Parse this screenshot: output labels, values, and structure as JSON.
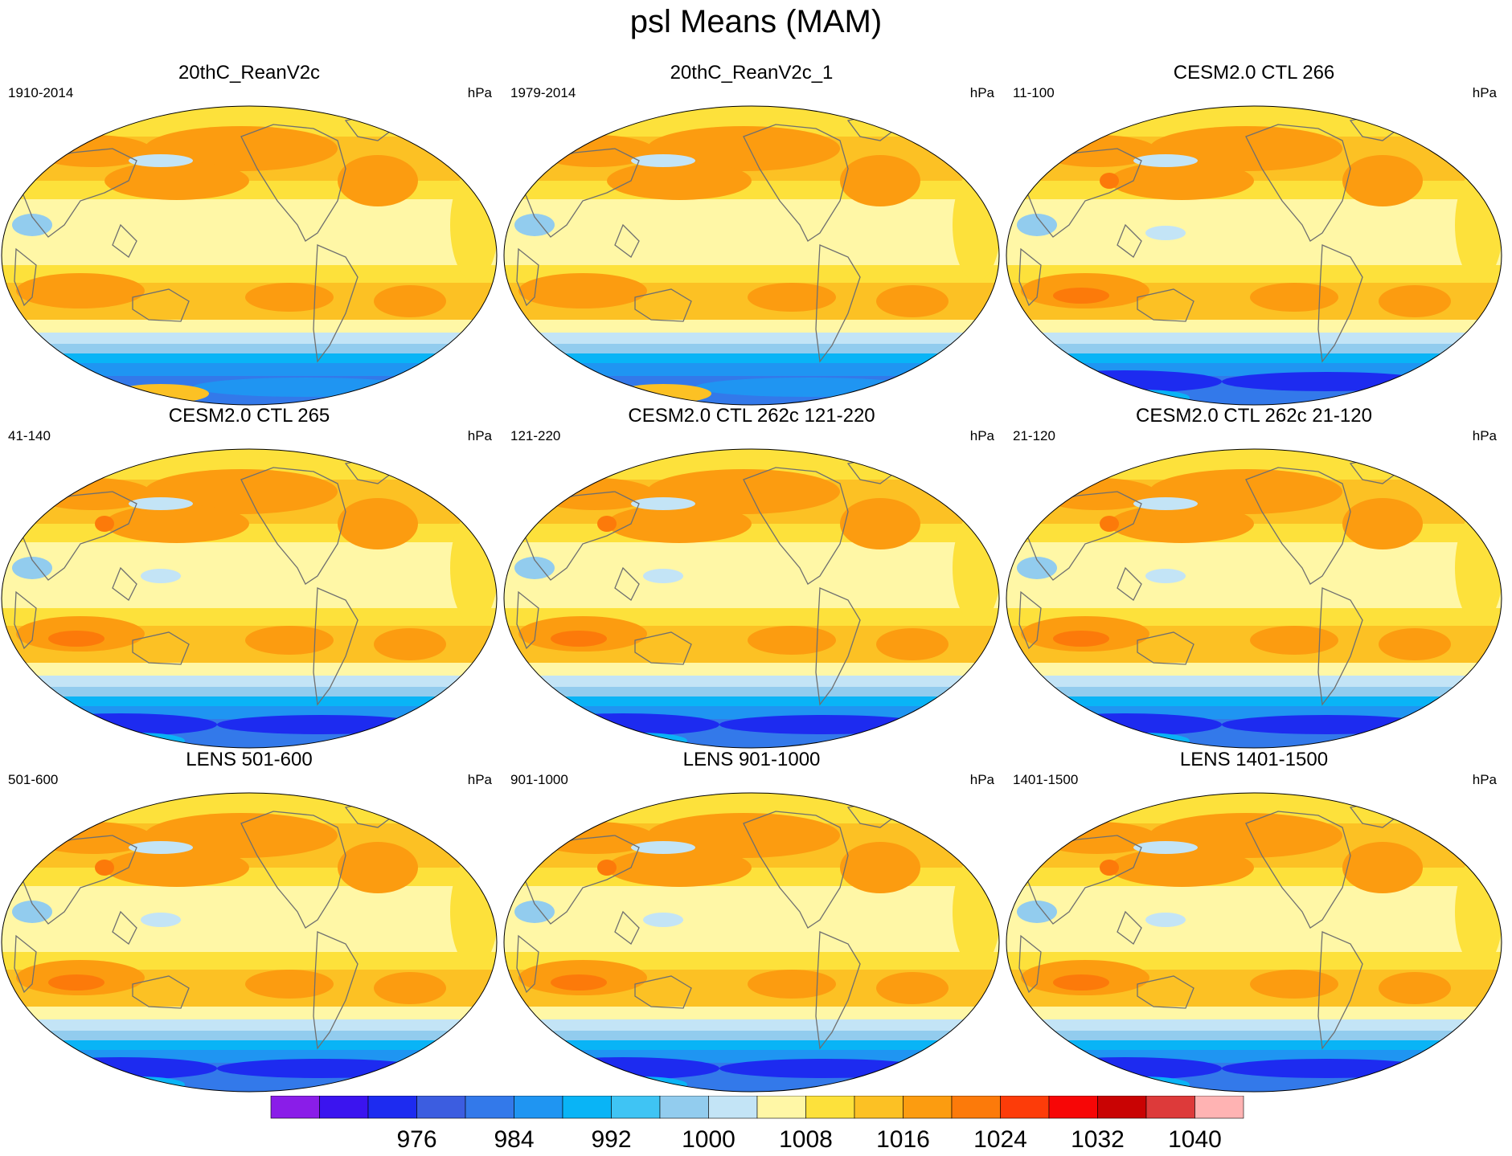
{
  "title": "psl Means (MAM)",
  "panels": [
    {
      "title": "20thC_ReanV2c",
      "left_label": "1910-2014",
      "right_label": "hPa"
    },
    {
      "title": "20thC_ReanV2c_1",
      "left_label": "1979-2014",
      "right_label": "hPa"
    },
    {
      "title": "CESM2.0 CTL 266",
      "left_label": "11-100",
      "right_label": "hPa"
    },
    {
      "title": "CESM2.0 CTL 265",
      "left_label": "41-140",
      "right_label": "hPa"
    },
    {
      "title": "CESM2.0 CTL 262c 121-220",
      "left_label": "121-220",
      "right_label": "hPa"
    },
    {
      "title": "CESM2.0 CTL 262c 21-120",
      "left_label": "21-120",
      "right_label": "hPa"
    },
    {
      "title": "LENS 501-600",
      "left_label": "501-600",
      "right_label": "hPa"
    },
    {
      "title": "LENS 901-1000",
      "left_label": "901-1000",
      "right_label": "hPa"
    },
    {
      "title": "LENS 1401-1500",
      "left_label": "1401-1500",
      "right_label": "hPa"
    }
  ],
  "chart_data": {
    "type": "heatmap",
    "title": "psl Means (MAM)",
    "units": "hPa",
    "colorbar": {
      "tick_labels": [
        "976",
        "984",
        "992",
        "1000",
        "1008",
        "1016",
        "1024",
        "1032",
        "1040"
      ],
      "colors": [
        "#8a1de8",
        "#3b14ef",
        "#1d2bf0",
        "#3c5de0",
        "#3379ea",
        "#1f95f2",
        "#09b4f6",
        "#3fc4f4",
        "#92ccee",
        "#c3e4f6",
        "#fff7a6",
        "#fde13b",
        "#fcc124",
        "#fc9c10",
        "#fc7a0a",
        "#fd3c09",
        "#f70606",
        "#c90303",
        "#dd3a3a",
        "#ffb3b3"
      ]
    }
  }
}
